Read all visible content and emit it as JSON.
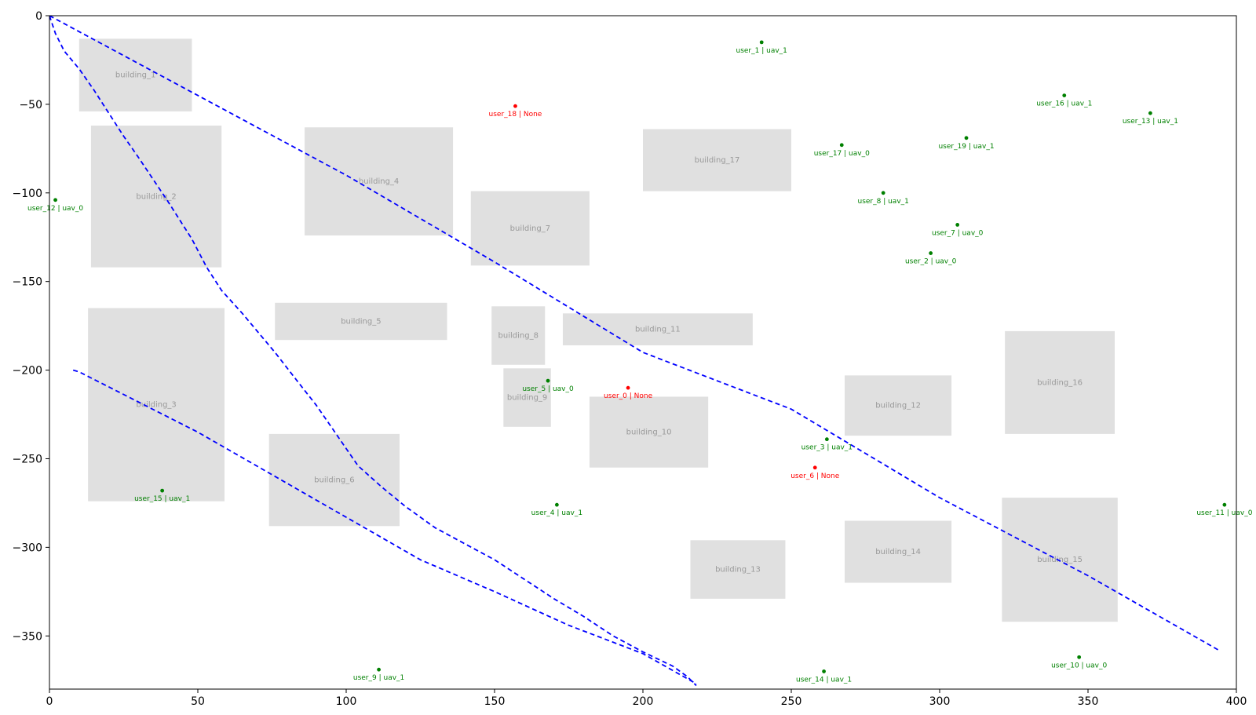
{
  "chart_data": {
    "type": "scatter",
    "title": "",
    "xlabel": "",
    "ylabel": "",
    "xlim": [
      0,
      400
    ],
    "ylim": [
      -380,
      0
    ],
    "x_ticks": [
      0,
      50,
      100,
      150,
      200,
      250,
      300,
      350,
      400
    ],
    "y_ticks": [
      0,
      -50,
      -100,
      -150,
      -200,
      -250,
      -300,
      -350
    ],
    "x_tick_labels": [
      "0",
      "50",
      "100",
      "150",
      "200",
      "250",
      "300",
      "350",
      "400"
    ],
    "y_tick_labels": [
      "0",
      "−50",
      "−100",
      "−150",
      "−200",
      "−250",
      "−300",
      "−350"
    ],
    "grid": false,
    "colors": {
      "building_fill": "#e0e0e0",
      "building_label": "#999999",
      "assigned_user": "#008000",
      "unassigned_user": "#ff0000",
      "trajectory": "#0000ff"
    },
    "buildings": [
      {
        "label": "building_1",
        "x0": 10,
        "x1": 48,
        "y0": -13,
        "y1": -54
      },
      {
        "label": "building_2",
        "x0": 14,
        "x1": 58,
        "y0": -62,
        "y1": -142
      },
      {
        "label": "building_3",
        "x0": 13,
        "x1": 59,
        "y0": -165,
        "y1": -274
      },
      {
        "label": "building_4",
        "x0": 86,
        "x1": 136,
        "y0": -63,
        "y1": -124
      },
      {
        "label": "building_5",
        "x0": 76,
        "x1": 134,
        "y0": -162,
        "y1": -183
      },
      {
        "label": "building_6",
        "x0": 74,
        "x1": 118,
        "y0": -236,
        "y1": -288
      },
      {
        "label": "building_7",
        "x0": 142,
        "x1": 182,
        "y0": -99,
        "y1": -141
      },
      {
        "label": "building_8",
        "x0": 149,
        "x1": 167,
        "y0": -164,
        "y1": -197
      },
      {
        "label": "building_9",
        "x0": 153,
        "x1": 169,
        "y0": -199,
        "y1": -232
      },
      {
        "label": "building_10",
        "x0": 182,
        "x1": 222,
        "y0": -215,
        "y1": -255
      },
      {
        "label": "building_11",
        "x0": 173,
        "x1": 237,
        "y0": -168,
        "y1": -186
      },
      {
        "label": "building_12",
        "x0": 268,
        "x1": 304,
        "y0": -203,
        "y1": -237
      },
      {
        "label": "building_13",
        "x0": 216,
        "x1": 248,
        "y0": -296,
        "y1": -329
      },
      {
        "label": "building_14",
        "x0": 268,
        "x1": 304,
        "y0": -285,
        "y1": -320
      },
      {
        "label": "building_15",
        "x0": 321,
        "x1": 360,
        "y0": -272,
        "y1": -342
      },
      {
        "label": "building_16",
        "x0": 322,
        "x1": 359,
        "y0": -178,
        "y1": -236
      },
      {
        "label": "building_17",
        "x0": 200,
        "x1": 250,
        "y0": -64,
        "y1": -99
      }
    ],
    "users": [
      {
        "label": "user_0 | None",
        "x": 195,
        "y": -210,
        "assigned": false
      },
      {
        "label": "user_1 | uav_1",
        "x": 240,
        "y": -15,
        "assigned": true
      },
      {
        "label": "user_2 | uav_0",
        "x": 297,
        "y": -134,
        "assigned": true
      },
      {
        "label": "user_3 | uav_1",
        "x": 262,
        "y": -239,
        "assigned": true
      },
      {
        "label": "user_4 | uav_1",
        "x": 171,
        "y": -276,
        "assigned": true
      },
      {
        "label": "user_5 | uav_0",
        "x": 168,
        "y": -206,
        "assigned": true
      },
      {
        "label": "user_6 | None",
        "x": 258,
        "y": -255,
        "assigned": false
      },
      {
        "label": "user_7 | uav_0",
        "x": 306,
        "y": -118,
        "assigned": true
      },
      {
        "label": "user_8 | uav_1",
        "x": 281,
        "y": -100,
        "assigned": true
      },
      {
        "label": "user_9 | uav_1",
        "x": 111,
        "y": -369,
        "assigned": true
      },
      {
        "label": "user_10 | uav_0",
        "x": 347,
        "y": -362,
        "assigned": true
      },
      {
        "label": "user_11 | uav_0",
        "x": 396,
        "y": -276,
        "assigned": true
      },
      {
        "label": "user_12 | uav_0",
        "x": 2,
        "y": -104,
        "assigned": true
      },
      {
        "label": "user_13 | uav_1",
        "x": 371,
        "y": -55,
        "assigned": true
      },
      {
        "label": "user_14 | uav_1",
        "x": 261,
        "y": -370,
        "assigned": true
      },
      {
        "label": "user_15 | uav_1",
        "x": 38,
        "y": -268,
        "assigned": true
      },
      {
        "label": "user_16 | uav_1",
        "x": 342,
        "y": -45,
        "assigned": true
      },
      {
        "label": "user_17 | uav_0",
        "x": 267,
        "y": -73,
        "assigned": true
      },
      {
        "label": "user_18 | None",
        "x": 157,
        "y": -51,
        "assigned": false
      },
      {
        "label": "user_19 | uav_1",
        "x": 309,
        "y": -69,
        "assigned": true
      }
    ],
    "trajectories": [
      {
        "points": [
          [
            0,
            0
          ],
          [
            50,
            -45
          ],
          [
            100,
            -90
          ],
          [
            150,
            -139
          ],
          [
            200,
            -190
          ],
          [
            250,
            -222
          ],
          [
            300,
            -272
          ],
          [
            350,
            -316
          ],
          [
            394,
            -358
          ]
        ]
      },
      {
        "points": [
          [
            0,
            0
          ],
          [
            2,
            -10
          ],
          [
            5,
            -20
          ],
          [
            10,
            -30
          ],
          [
            15,
            -42
          ],
          [
            20,
            -55
          ],
          [
            25,
            -68
          ],
          [
            30,
            -80
          ],
          [
            40,
            -105
          ],
          [
            48,
            -126
          ],
          [
            53,
            -142
          ],
          [
            58,
            -155
          ],
          [
            65,
            -168
          ],
          [
            76,
            -190
          ],
          [
            83,
            -205
          ],
          [
            90,
            -220
          ],
          [
            97,
            -237
          ],
          [
            104,
            -254
          ],
          [
            112,
            -266
          ],
          [
            120,
            -277
          ],
          [
            130,
            -289
          ],
          [
            140,
            -298
          ],
          [
            150,
            -307
          ],
          [
            160,
            -318
          ],
          [
            170,
            -329
          ],
          [
            180,
            -339
          ],
          [
            190,
            -350
          ],
          [
            200,
            -359
          ],
          [
            210,
            -367
          ],
          [
            215,
            -373
          ],
          [
            218,
            -378
          ]
        ]
      },
      {
        "points": [
          [
            8,
            -200
          ],
          [
            10,
            -201
          ],
          [
            50,
            -235
          ],
          [
            75,
            -259
          ],
          [
            100,
            -283
          ],
          [
            125,
            -307
          ],
          [
            150,
            -325
          ],
          [
            175,
            -344
          ],
          [
            200,
            -360
          ],
          [
            218,
            -377
          ]
        ]
      }
    ]
  }
}
